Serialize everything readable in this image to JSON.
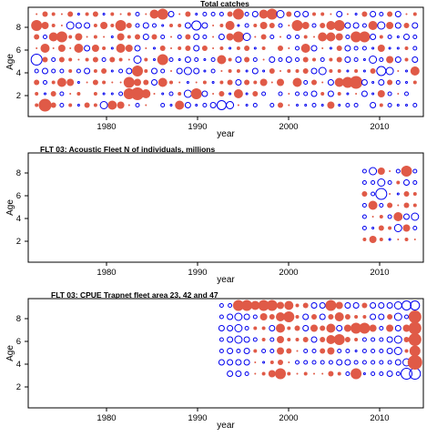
{
  "colors": {
    "positive": "#e05a47",
    "negative": "#0000ee",
    "axis": "#000000"
  },
  "chart_data": [
    {
      "type": "bubble-residuals",
      "title": "Total catches",
      "xlabel": "year",
      "ylabel": "Age",
      "xlim": [
        1967,
        2014
      ],
      "ylim": [
        0,
        9.6
      ],
      "xticks": [
        "1980",
        "1990",
        "2000",
        "2010"
      ],
      "yticks": [
        "2",
        "4",
        "6",
        "8"
      ],
      "x": [
        1968,
        1969,
        1970,
        1971,
        1972,
        1973,
        1974,
        1975,
        1976,
        1977,
        1978,
        1979,
        1980,
        1981,
        1982,
        1983,
        1984,
        1985,
        1986,
        1987,
        1988,
        1989,
        1990,
        1991,
        1992,
        1993,
        1994,
        1995,
        1996,
        1997,
        1998,
        1999,
        2000,
        2001,
        2002,
        2003,
        2004,
        2005,
        2006,
        2007,
        2008,
        2009,
        2010,
        2011,
        2012,
        2013
      ],
      "ages": [
        1,
        2,
        3,
        4,
        5,
        6,
        7,
        8,
        9
      ],
      "residual_rows": [
        [
          2,
          7,
          3,
          -2,
          2,
          -1,
          3,
          2,
          -4,
          5,
          4,
          1,
          -2,
          1,
          0,
          -2,
          -1,
          5,
          -3,
          -1,
          -2,
          -3,
          -5,
          -4,
          1,
          -1,
          -2,
          0,
          -2,
          3,
          1,
          -1,
          -1,
          -2,
          -1,
          4,
          -1,
          -2,
          -2,
          0,
          -3,
          2,
          -2,
          -1,
          -1,
          -2
        ],
        [
          2,
          -1,
          3,
          -2,
          1,
          2,
          0,
          2,
          -1,
          -1,
          -2,
          6,
          7,
          5,
          1,
          -1,
          -2,
          2,
          -4,
          6,
          -3,
          1,
          3,
          -1,
          5,
          -1,
          3,
          -2,
          0,
          -2,
          1,
          -2,
          -2,
          -3,
          2,
          -3,
          2,
          -1,
          1,
          -3,
          -1,
          4,
          -2,
          1,
          -2,
          0
        ],
        [
          3,
          -2,
          2,
          5,
          4,
          -1,
          1,
          3,
          2,
          1,
          1,
          6,
          4,
          3,
          -3,
          5,
          2,
          1,
          -1,
          1,
          2,
          -1,
          2,
          3,
          -3,
          3,
          2,
          4,
          1,
          4,
          0,
          5,
          -2,
          3,
          1,
          -3,
          5,
          6,
          7,
          -3,
          -1,
          -3,
          3,
          -2,
          -1,
          2
        ],
        [
          -2,
          -3,
          -2,
          -2,
          2,
          -2,
          -3,
          2,
          3,
          -1,
          -2,
          -3,
          6,
          2,
          -3,
          -2,
          1,
          -3,
          -4,
          -3,
          -1,
          -2,
          1,
          2,
          2,
          -1,
          -3,
          -1,
          3,
          1,
          2,
          2,
          3,
          -3,
          -4,
          2,
          2,
          -1,
          2,
          -1,
          3,
          -5,
          -4,
          1,
          -1,
          5
        ],
        [
          -6,
          3,
          -2,
          3,
          2,
          1,
          2,
          3,
          -2,
          3,
          2,
          1,
          -4,
          2,
          -1,
          6,
          -2,
          -1,
          -3,
          -2,
          -1,
          -2,
          5,
          2,
          -3,
          3,
          -2,
          1,
          -3,
          -2,
          -3,
          -2,
          3,
          2,
          -2,
          2,
          3,
          -3,
          -2,
          -1,
          -4,
          -2,
          4,
          -3,
          2,
          -3
        ],
        [
          1,
          5,
          1,
          4,
          1,
          5,
          -3,
          4,
          2,
          -1,
          5,
          4,
          -3,
          1,
          -1,
          3,
          1,
          2,
          3,
          -3,
          3,
          1,
          2,
          -1,
          2,
          3,
          -1,
          2,
          0,
          3,
          1,
          -2,
          5,
          -3,
          1,
          -1,
          3,
          -3,
          -2,
          -2,
          -1,
          4,
          -1,
          -1,
          2,
          -2
        ],
        [
          3,
          -2,
          5,
          6,
          2,
          4,
          1,
          2,
          1,
          -1,
          4,
          2,
          3,
          -3,
          3,
          -2,
          1,
          -2,
          3,
          -3,
          -2,
          1,
          -3,
          4,
          6,
          -4,
          1,
          3,
          -2,
          1,
          -2,
          -2,
          2,
          1,
          5,
          5,
          4,
          -2,
          6,
          6,
          -3,
          2,
          -2,
          -1,
          -3,
          -2
        ],
        [
          6,
          4,
          2,
          1,
          -4,
          -3,
          -3,
          2,
          4,
          2,
          6,
          3,
          -2,
          -3,
          -2,
          -1,
          2,
          2,
          -3,
          -5,
          -3,
          1,
          2,
          5,
          -1,
          -2,
          2,
          4,
          3,
          -2,
          1,
          6,
          4,
          -2,
          3,
          5,
          6,
          -3,
          -3,
          -2,
          5,
          -4,
          4,
          -3,
          3,
          -3
        ],
        [
          1,
          3,
          2,
          1,
          3,
          -1,
          2,
          3,
          -1,
          2,
          1,
          2,
          -2,
          1,
          5,
          6,
          -3,
          1,
          3,
          -1,
          -2,
          -2,
          -2,
          3,
          6,
          -2,
          -3,
          5,
          6,
          -4,
          3,
          -3,
          -3,
          2,
          2,
          1,
          -3,
          1,
          -1,
          3,
          -3,
          -2,
          3,
          -3,
          1,
          2
        ]
      ]
    },
    {
      "type": "bubble-residuals",
      "title": "FLT 03: Acoustic Fleet   N of individuals, millions",
      "xlabel": "year",
      "ylabel": "Age",
      "xlim": [
        1967,
        2014
      ],
      "ylim": [
        0,
        9.6
      ],
      "xticks": [
        "1980",
        "1990",
        "2000",
        "2010"
      ],
      "yticks": [
        "2",
        "4",
        "6",
        "8"
      ],
      "x": [
        2007,
        2008,
        2009,
        2010,
        2011,
        2012,
        2013
      ],
      "ages": [
        2,
        3,
        4,
        5,
        6,
        7,
        8
      ],
      "residual_rows": [
        [
          2,
          4,
          2,
          -1,
          1,
          2,
          1
        ],
        [
          -2,
          -1,
          3,
          2,
          -4,
          4,
          -2
        ],
        [
          -2,
          1,
          2,
          -2,
          5,
          -3,
          -4
        ],
        [
          -2,
          5,
          -2,
          3,
          1,
          3,
          2
        ],
        [
          3,
          -2,
          -6,
          1,
          -1,
          3,
          2
        ],
        [
          -2,
          -2,
          -4,
          -2,
          2,
          -3,
          -2
        ],
        [
          -2,
          -4,
          4,
          1,
          -2,
          6,
          -2
        ]
      ]
    },
    {
      "type": "bubble-residuals",
      "title": "FLT 03: CPUE Trapnet fleet area 23, 42 and 47",
      "xlabel": "year",
      "ylabel": "Age",
      "xlim": [
        1967,
        2014
      ],
      "ylim": [
        0,
        9.6
      ],
      "xticks": [
        "1980",
        "1990",
        "2000",
        "2010"
      ],
      "yticks": [
        "2",
        "4",
        "6",
        "8"
      ],
      "x": [
        1990,
        1991,
        1992,
        1993,
        1994,
        1995,
        1996,
        1997,
        1998,
        1999,
        2000,
        2001,
        2002,
        2003,
        2004,
        2005,
        2006,
        2007,
        2008,
        2009,
        2010,
        2011,
        2012,
        2013
      ],
      "ages": [
        3,
        4,
        5,
        6,
        7,
        8,
        9
      ],
      "residual_rows": [
        [
          0,
          -3,
          -3,
          -2,
          1,
          2,
          4,
          6,
          2,
          1,
          2,
          1,
          1,
          3,
          2,
          -2,
          6,
          -1,
          -2,
          -2,
          -3,
          -2,
          -6,
          -6
        ],
        [
          -3,
          -3,
          -3,
          -3,
          1,
          -1,
          2,
          3,
          1,
          -2,
          -2,
          -2,
          -2,
          -2,
          -3,
          -3,
          -2,
          -2,
          -2,
          -2,
          -2,
          -3,
          -4,
          8
        ],
        [
          -2,
          -3,
          -2,
          -3,
          2,
          -2,
          -2,
          4,
          3,
          1,
          -2,
          -2,
          3,
          4,
          -2,
          -2,
          -1,
          -2,
          -2,
          -2,
          -3,
          -4,
          2,
          6
        ],
        [
          -2,
          -3,
          -4,
          -3,
          -2,
          2,
          -2,
          4,
          2,
          2,
          3,
          -3,
          3,
          5,
          6,
          3,
          2,
          -2,
          -2,
          -2,
          -3,
          -4,
          3,
          7
        ],
        [
          -3,
          -3,
          -4,
          -2,
          2,
          2,
          -3,
          5,
          2,
          3,
          -3,
          4,
          3,
          5,
          -3,
          4,
          6,
          6,
          4,
          -2,
          4,
          -3,
          4,
          7
        ],
        [
          -2,
          -3,
          -4,
          -3,
          -2,
          4,
          3,
          5,
          6,
          2,
          -3,
          3,
          -3,
          3,
          5,
          3,
          2,
          2,
          -3,
          -3,
          3,
          -4,
          -2,
          7
        ],
        [
          -2,
          -2,
          6,
          6,
          5,
          6,
          6,
          4,
          5,
          2,
          3,
          -3,
          -3,
          6,
          4,
          -3,
          -3,
          3,
          -3,
          -3,
          -3,
          -4,
          -5,
          -5
        ]
      ]
    }
  ]
}
